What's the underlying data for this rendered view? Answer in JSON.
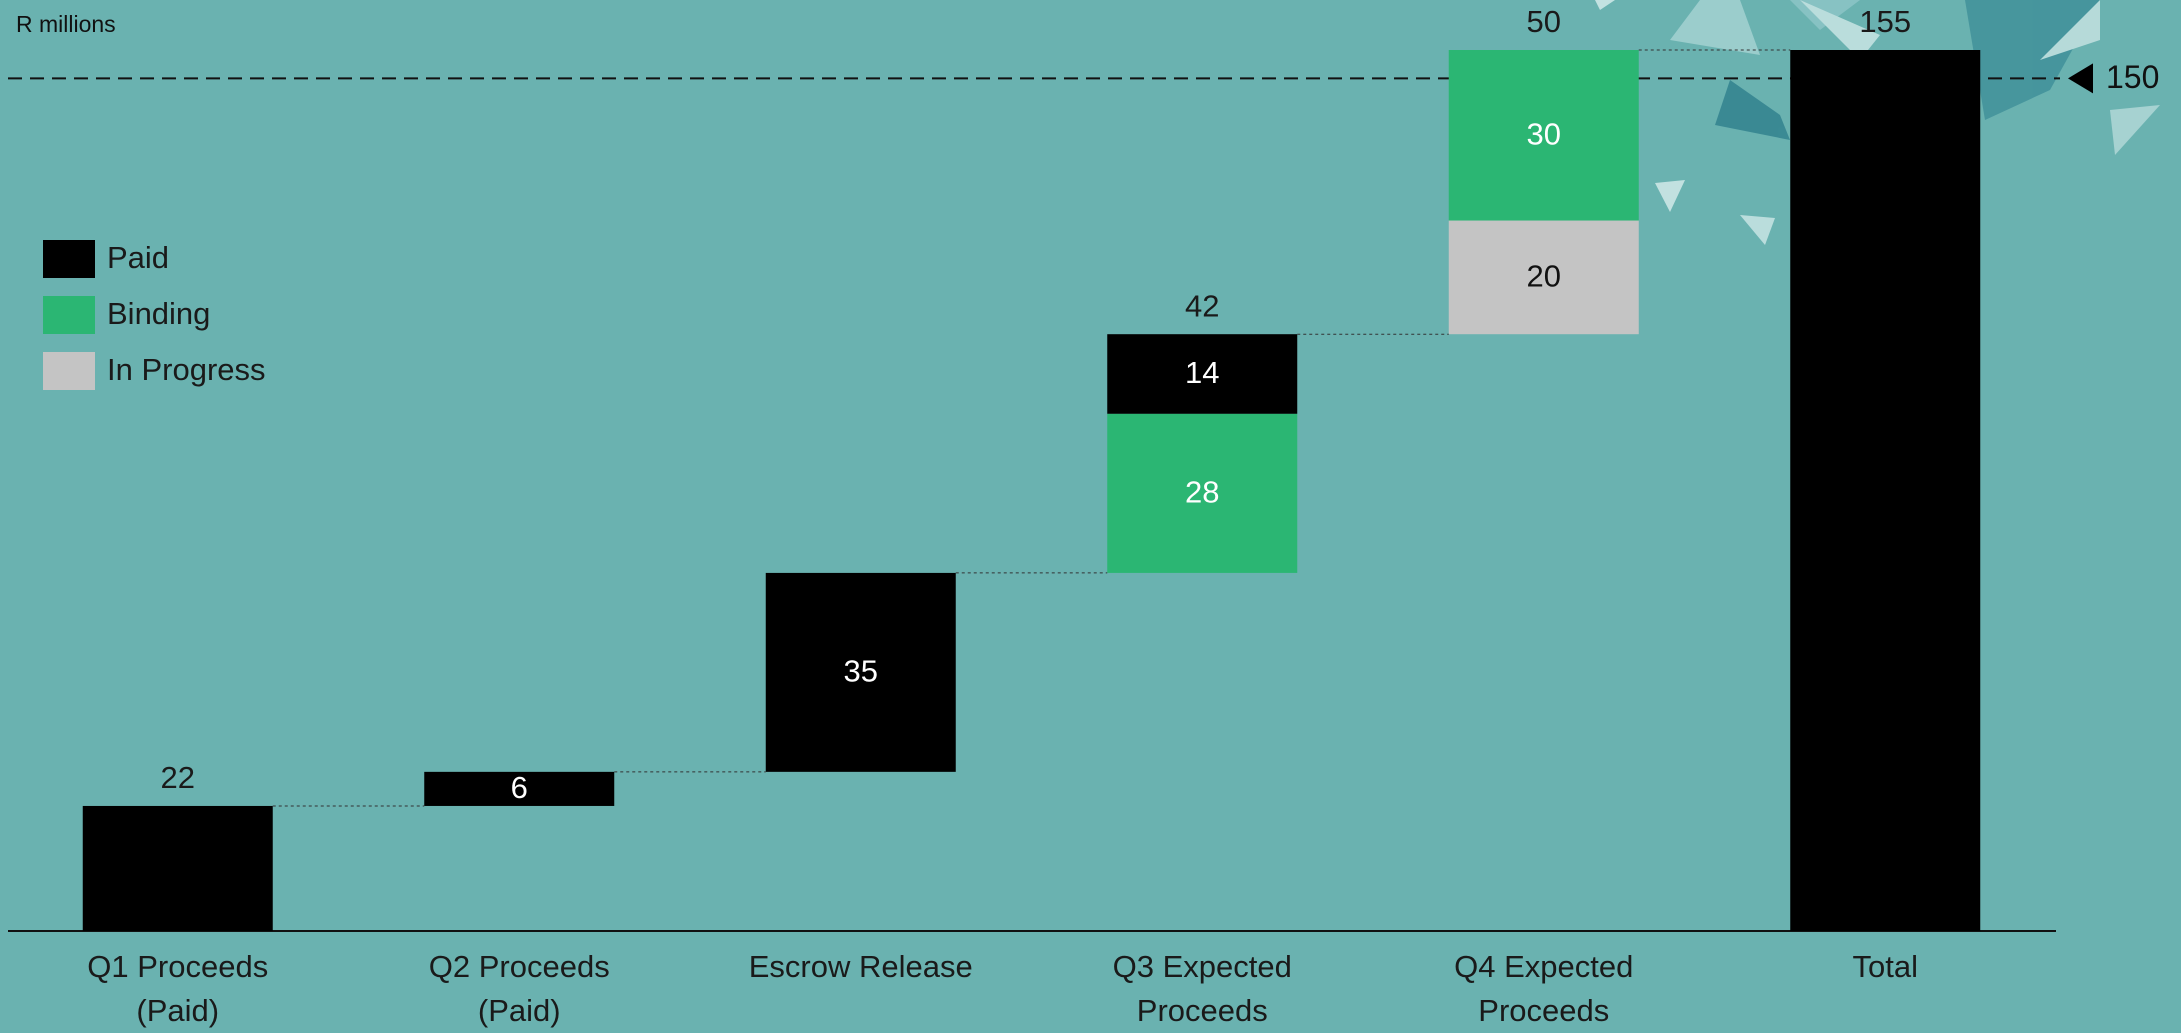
{
  "chart_data": {
    "type": "waterfall",
    "unit_label": "R millions",
    "categories": [
      "Q1 Proceeds (Paid)",
      "Q2 Proceeds (Paid)",
      "Escrow Release",
      "Q3 Expected Proceeds",
      "Q4 Expected Proceeds",
      "Total"
    ],
    "measures": [
      "relative",
      "relative",
      "relative",
      "relative",
      "relative",
      "total"
    ],
    "series": [
      {
        "name": "Paid",
        "color": "#000000",
        "values": [
          22,
          6,
          35,
          14,
          null,
          155
        ]
      },
      {
        "name": "Binding",
        "color": "#2bb673",
        "values": [
          null,
          null,
          null,
          28,
          30,
          null
        ]
      },
      {
        "name": "In Progress",
        "color": "#c4c4c4",
        "values": [
          null,
          null,
          null,
          null,
          20,
          null
        ]
      }
    ],
    "totals": [
      22,
      null,
      null,
      42,
      50,
      155
    ],
    "reference_line": 150,
    "ylim": [
      0,
      155
    ],
    "legend": "left"
  }
}
